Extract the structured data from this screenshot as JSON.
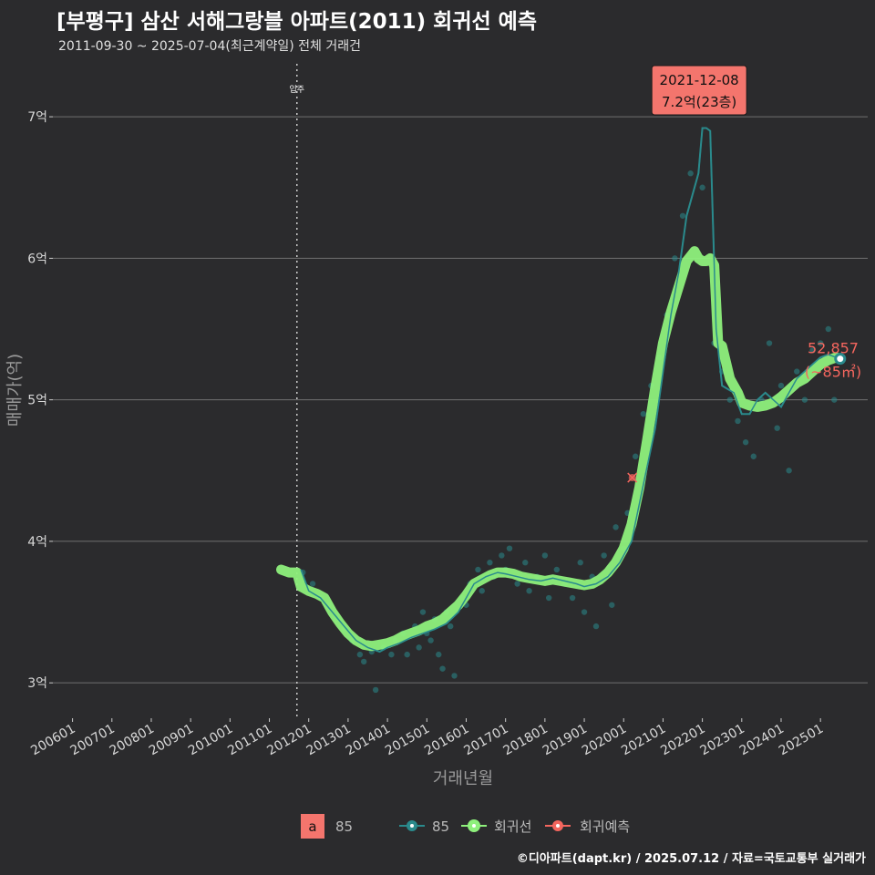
{
  "title": "[부평구] 삼산 서해그랑블 아파트(2011) 회귀선 예측",
  "subtitle": "2011-09-30 ~ 2025-07-04(최근계약일) 전체 거래건",
  "caption": "©디아파트(dapt.kr) / 2025.07.12 / 자료=국토교통부 실거래가",
  "colors": {
    "background": "#2b2b2d",
    "line85": "#2a8a8c",
    "regression": "#8ef07c",
    "prediction": "#f4665e",
    "grid": "#707070"
  },
  "chart_data": {
    "type": "line",
    "xlabel": "거래년월",
    "ylabel": "매매가(억)",
    "x_tick_labels": [
      "200601",
      "200701",
      "200801",
      "200901",
      "201001",
      "201101",
      "201201",
      "201301",
      "201401",
      "201501",
      "201601",
      "201701",
      "201801",
      "201901",
      "202001",
      "202101",
      "202201",
      "202301",
      "202401",
      "202501"
    ],
    "x_range": [
      2005.5,
      2026.2
    ],
    "y_ticks": [
      3,
      4,
      5,
      6,
      7
    ],
    "y_tick_labels": [
      "3억",
      "4억",
      "5억",
      "6억",
      "7억"
    ],
    "ylim": [
      2.75,
      7.4
    ],
    "vline": {
      "x": 2011.7,
      "label": "입주"
    },
    "annotation": {
      "x": 2021.92,
      "y": 7.2,
      "line1": "2021-12-08",
      "line2": "7.2억(23층)"
    },
    "last_label": {
      "x": 2025.5,
      "y": 5.29,
      "line1": "52,857",
      "line2": "(~85㎡)"
    },
    "prediction_point": {
      "x": 2020.22,
      "y": 4.45
    },
    "legend": {
      "box_letter": "a",
      "box_label": "85",
      "line_label": "85",
      "regression_label": "회귀선",
      "prediction_label": "회귀예측"
    },
    "series": [
      {
        "name": "85",
        "x": [
          2011.8,
          2012.0,
          2012.3,
          2012.6,
          2012.9,
          2013.2,
          2013.5,
          2013.8,
          2014.0,
          2014.3,
          2014.6,
          2014.9,
          2015.2,
          2015.5,
          2015.8,
          2016.0,
          2016.2,
          2016.5,
          2016.8,
          2017.0,
          2017.3,
          2017.6,
          2017.9,
          2018.2,
          2018.5,
          2018.8,
          2019.0,
          2019.3,
          2019.6,
          2019.9,
          2020.2,
          2020.5,
          2020.8,
          2021.0,
          2021.2,
          2021.4,
          2021.6,
          2021.8,
          2021.9,
          2022.0,
          2022.1,
          2022.2,
          2022.35,
          2022.5,
          2022.8,
          2023.0,
          2023.2,
          2023.4,
          2023.6,
          2023.8,
          2024.0,
          2024.2,
          2024.4,
          2024.6,
          2024.8,
          2025.0,
          2025.2,
          2025.4,
          2025.5
        ],
        "y": [
          3.8,
          3.65,
          3.6,
          3.5,
          3.4,
          3.3,
          3.25,
          3.22,
          3.25,
          3.28,
          3.32,
          3.35,
          3.38,
          3.42,
          3.5,
          3.6,
          3.7,
          3.75,
          3.78,
          3.77,
          3.75,
          3.73,
          3.72,
          3.74,
          3.72,
          3.7,
          3.68,
          3.7,
          3.75,
          3.85,
          4.0,
          4.4,
          4.8,
          5.2,
          5.6,
          5.9,
          6.3,
          6.5,
          6.6,
          6.92,
          6.92,
          6.9,
          5.5,
          5.1,
          5.05,
          4.9,
          4.9,
          5.0,
          5.05,
          5.0,
          4.95,
          5.05,
          5.15,
          5.2,
          5.25,
          5.3,
          5.32,
          5.3,
          5.29
        ]
      },
      {
        "name": "회귀선",
        "x": [
          2011.3,
          2011.5,
          2011.7,
          2011.8,
          2012.0,
          2012.2,
          2012.4,
          2012.6,
          2012.8,
          2013.0,
          2013.2,
          2013.4,
          2013.6,
          2013.8,
          2014.0,
          2014.2,
          2014.4,
          2014.6,
          2014.8,
          2015.0,
          2015.2,
          2015.4,
          2015.6,
          2015.8,
          2016.0,
          2016.2,
          2016.4,
          2016.6,
          2016.8,
          2017.0,
          2017.2,
          2017.4,
          2017.6,
          2017.8,
          2018.0,
          2018.2,
          2018.4,
          2018.6,
          2018.8,
          2019.0,
          2019.2,
          2019.4,
          2019.6,
          2019.8,
          2020.0,
          2020.2,
          2020.4,
          2020.6,
          2020.8,
          2021.0,
          2021.2,
          2021.4,
          2021.6,
          2021.8,
          2021.9,
          2022.0,
          2022.1,
          2022.2,
          2022.3,
          2022.4,
          2022.5,
          2022.7,
          2022.9,
          2023.0,
          2023.2,
          2023.4,
          2023.6,
          2023.8,
          2024.0,
          2024.2,
          2024.4,
          2024.6,
          2024.8,
          2025.0,
          2025.2,
          2025.4
        ],
        "y": [
          3.8,
          3.78,
          3.78,
          3.68,
          3.65,
          3.63,
          3.6,
          3.5,
          3.42,
          3.35,
          3.3,
          3.27,
          3.26,
          3.27,
          3.28,
          3.3,
          3.33,
          3.35,
          3.37,
          3.4,
          3.42,
          3.45,
          3.5,
          3.55,
          3.62,
          3.7,
          3.73,
          3.76,
          3.78,
          3.78,
          3.77,
          3.75,
          3.74,
          3.73,
          3.72,
          3.73,
          3.72,
          3.71,
          3.7,
          3.69,
          3.7,
          3.73,
          3.78,
          3.85,
          3.95,
          4.12,
          4.38,
          4.72,
          5.08,
          5.4,
          5.62,
          5.8,
          5.98,
          6.05,
          6.0,
          5.98,
          5.98,
          6.0,
          5.95,
          5.4,
          5.38,
          5.15,
          5.05,
          4.98,
          4.96,
          4.95,
          4.96,
          4.98,
          5.02,
          5.07,
          5.12,
          5.15,
          5.2,
          5.25,
          5.28,
          5.3
        ]
      }
    ],
    "scatter": {
      "name": "거래건",
      "x": [
        2011.85,
        2012.1,
        2012.3,
        2012.5,
        2012.7,
        2012.9,
        2013.1,
        2013.3,
        2013.4,
        2013.6,
        2013.7,
        2013.9,
        2014.1,
        2014.2,
        2014.4,
        2014.5,
        2014.7,
        2014.8,
        2014.9,
        2015.0,
        2015.1,
        2015.2,
        2015.3,
        2015.4,
        2015.5,
        2015.6,
        2015.7,
        2015.9,
        2016.0,
        2016.1,
        2016.3,
        2016.4,
        2016.6,
        2016.7,
        2016.9,
        2017.0,
        2017.1,
        2017.3,
        2017.5,
        2017.6,
        2017.8,
        2018.0,
        2018.1,
        2018.3,
        2018.5,
        2018.7,
        2018.9,
        2019.0,
        2019.2,
        2019.3,
        2019.5,
        2019.7,
        2019.8,
        2020.0,
        2020.1,
        2020.3,
        2020.5,
        2020.7,
        2020.9,
        2021.1,
        2021.3,
        2021.5,
        2021.7,
        2021.9,
        2022.0,
        2022.3,
        2022.5,
        2022.7,
        2022.9,
        2023.1,
        2023.3,
        2023.5,
        2023.7,
        2023.9,
        2024.0,
        2024.2,
        2024.4,
        2024.6,
        2024.8,
        2025.0,
        2025.2,
        2025.35
      ],
      "y": [
        3.78,
        3.7,
        3.6,
        3.55,
        3.45,
        3.38,
        3.3,
        3.2,
        3.15,
        3.22,
        2.95,
        3.25,
        3.2,
        3.3,
        3.35,
        3.2,
        3.4,
        3.25,
        3.5,
        3.35,
        3.3,
        3.45,
        3.2,
        3.1,
        3.5,
        3.4,
        3.05,
        3.6,
        3.55,
        3.7,
        3.8,
        3.65,
        3.85,
        3.75,
        3.9,
        3.8,
        3.95,
        3.7,
        3.85,
        3.65,
        3.75,
        3.9,
        3.6,
        3.8,
        3.7,
        3.6,
        3.85,
        3.5,
        3.75,
        3.4,
        3.9,
        3.55,
        4.1,
        3.95,
        4.2,
        4.6,
        4.9,
        5.1,
        5.3,
        5.6,
        6.0,
        6.3,
        6.6,
        7.2,
        6.5,
        5.4,
        5.2,
        5.0,
        4.85,
        4.7,
        4.6,
        5.0,
        5.4,
        4.8,
        5.1,
        4.5,
        5.2,
        5.0,
        5.35,
        5.4,
        5.5,
        5.0
      ]
    }
  }
}
